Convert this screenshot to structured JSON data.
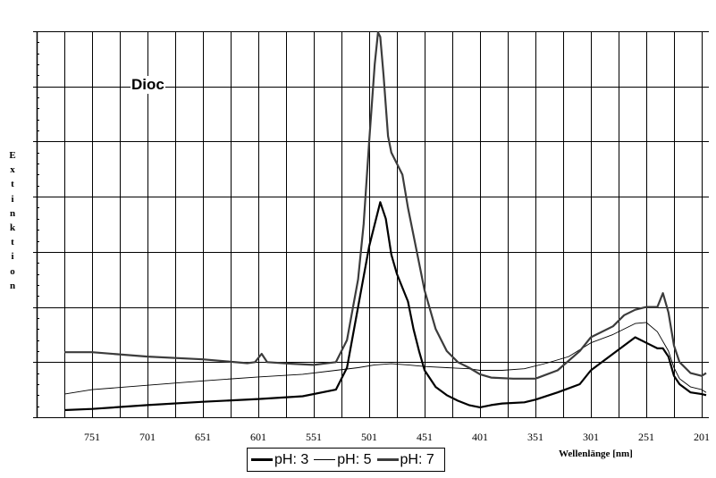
{
  "chart_data": {
    "type": "line",
    "title": "Dioc",
    "xlabel": "Wellenlänge [nm]",
    "ylabel": "Extinktion",
    "ylabel_letters": [
      "E",
      "x",
      "t",
      "i",
      "n",
      "k",
      "t",
      "i",
      "o",
      "n"
    ],
    "x_tick_labels": [
      "751",
      "701",
      "651",
      "601",
      "551",
      "501",
      "451",
      "401",
      "351",
      "301",
      "251",
      "201"
    ],
    "x_ticks": [
      751,
      701,
      651,
      601,
      551,
      501,
      451,
      401,
      351,
      301,
      251,
      201
    ],
    "xlim": [
      776,
      197
    ],
    "x_reversed": true,
    "ylim": [
      0,
      7
    ],
    "y_tick_labels": [],
    "y_units_note": "y values in major-gridline units (axis has no numeric labels)",
    "grid": true,
    "legend_position": "bottom",
    "series": [
      {
        "name": "pH: 3",
        "color": "#000000",
        "width": 2.2,
        "points": [
          [
            776,
            0.13
          ],
          [
            751,
            0.15
          ],
          [
            701,
            0.22
          ],
          [
            651,
            0.28
          ],
          [
            601,
            0.33
          ],
          [
            561,
            0.38
          ],
          [
            531,
            0.5
          ],
          [
            521,
            0.9
          ],
          [
            511,
            2.0
          ],
          [
            501,
            3.1
          ],
          [
            491,
            3.9
          ],
          [
            486,
            3.6
          ],
          [
            481,
            2.95
          ],
          [
            476,
            2.6
          ],
          [
            471,
            2.35
          ],
          [
            466,
            2.1
          ],
          [
            461,
            1.6
          ],
          [
            456,
            1.2
          ],
          [
            451,
            0.85
          ],
          [
            441,
            0.55
          ],
          [
            431,
            0.4
          ],
          [
            421,
            0.3
          ],
          [
            411,
            0.22
          ],
          [
            401,
            0.18
          ],
          [
            391,
            0.22
          ],
          [
            381,
            0.25
          ],
          [
            361,
            0.27
          ],
          [
            351,
            0.32
          ],
          [
            331,
            0.45
          ],
          [
            311,
            0.6
          ],
          [
            301,
            0.85
          ],
          [
            281,
            1.15
          ],
          [
            271,
            1.3
          ],
          [
            261,
            1.45
          ],
          [
            251,
            1.35
          ],
          [
            241,
            1.25
          ],
          [
            236,
            1.25
          ],
          [
            231,
            1.1
          ],
          [
            226,
            0.75
          ],
          [
            221,
            0.6
          ],
          [
            211,
            0.45
          ],
          [
            201,
            0.42
          ],
          [
            197,
            0.4
          ]
        ]
      },
      {
        "name": "pH: 5",
        "color": "#000000",
        "width": 0.9,
        "points": [
          [
            776,
            0.42
          ],
          [
            751,
            0.5
          ],
          [
            701,
            0.58
          ],
          [
            651,
            0.66
          ],
          [
            601,
            0.73
          ],
          [
            561,
            0.78
          ],
          [
            531,
            0.85
          ],
          [
            511,
            0.9
          ],
          [
            496,
            0.95
          ],
          [
            481,
            0.97
          ],
          [
            466,
            0.95
          ],
          [
            451,
            0.92
          ],
          [
            431,
            0.9
          ],
          [
            411,
            0.88
          ],
          [
            401,
            0.85
          ],
          [
            381,
            0.85
          ],
          [
            361,
            0.88
          ],
          [
            341,
            0.98
          ],
          [
            321,
            1.1
          ],
          [
            301,
            1.35
          ],
          [
            281,
            1.5
          ],
          [
            261,
            1.7
          ],
          [
            251,
            1.72
          ],
          [
            241,
            1.55
          ],
          [
            231,
            1.2
          ],
          [
            226,
            0.9
          ],
          [
            221,
            0.7
          ],
          [
            211,
            0.55
          ],
          [
            201,
            0.5
          ],
          [
            197,
            0.45
          ]
        ]
      },
      {
        "name": "pH: 7",
        "color": "#3c3c3c",
        "width": 2.2,
        "points": [
          [
            776,
            1.18
          ],
          [
            751,
            1.18
          ],
          [
            701,
            1.1
          ],
          [
            651,
            1.05
          ],
          [
            611,
            0.98
          ],
          [
            604,
            1.0
          ],
          [
            598,
            1.15
          ],
          [
            593,
            1.0
          ],
          [
            571,
            0.97
          ],
          [
            551,
            0.95
          ],
          [
            531,
            1.0
          ],
          [
            521,
            1.4
          ],
          [
            511,
            2.5
          ],
          [
            506,
            3.5
          ],
          [
            501,
            5.0
          ],
          [
            496,
            6.4
          ],
          [
            493,
            6.98
          ],
          [
            491,
            6.9
          ],
          [
            488,
            6.2
          ],
          [
            484,
            5.1
          ],
          [
            481,
            4.8
          ],
          [
            476,
            4.6
          ],
          [
            471,
            4.4
          ],
          [
            466,
            3.8
          ],
          [
            461,
            3.3
          ],
          [
            456,
            2.8
          ],
          [
            451,
            2.3
          ],
          [
            441,
            1.6
          ],
          [
            431,
            1.2
          ],
          [
            421,
            1.0
          ],
          [
            411,
            0.9
          ],
          [
            401,
            0.78
          ],
          [
            391,
            0.72
          ],
          [
            371,
            0.7
          ],
          [
            351,
            0.7
          ],
          [
            331,
            0.85
          ],
          [
            311,
            1.2
          ],
          [
            301,
            1.45
          ],
          [
            281,
            1.65
          ],
          [
            271,
            1.85
          ],
          [
            261,
            1.95
          ],
          [
            251,
            2.0
          ],
          [
            241,
            2.0
          ],
          [
            236,
            2.25
          ],
          [
            231,
            1.9
          ],
          [
            226,
            1.3
          ],
          [
            221,
            1.0
          ],
          [
            211,
            0.8
          ],
          [
            201,
            0.75
          ],
          [
            197,
            0.8
          ]
        ]
      }
    ]
  },
  "title": "Dioc",
  "xlabel": "Wellenlänge [nm]",
  "legend": {
    "items": [
      {
        "label": "pH: 3",
        "color": "#000000",
        "thickness": 3
      },
      {
        "label": "pH: 5",
        "color": "#000000",
        "thickness": 1
      },
      {
        "label": "pH: 7",
        "color": "#3c3c3c",
        "thickness": 3
      }
    ]
  }
}
